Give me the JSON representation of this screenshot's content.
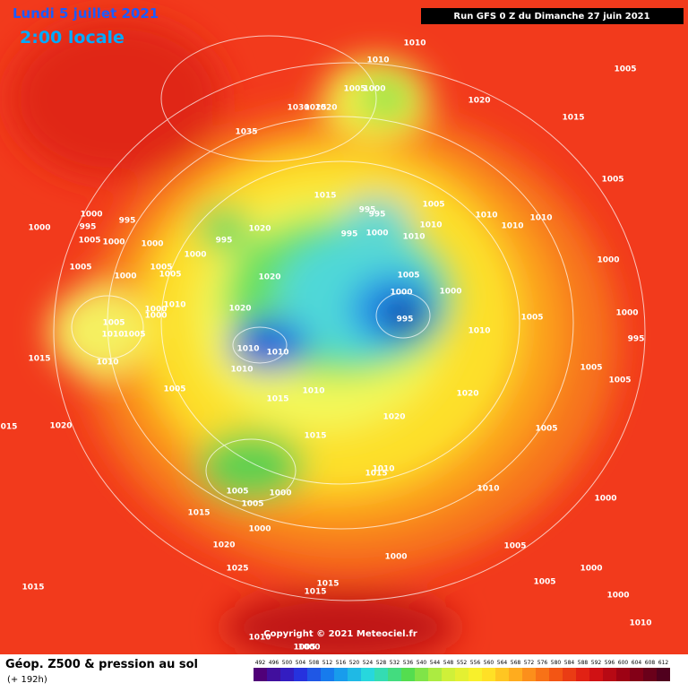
{
  "header": {
    "date": "Lundi 5 juillet 2021",
    "time": "2:00 locale",
    "run": "Run GFS 0 Z du Dimanche 27 juin 2021"
  },
  "footer": {
    "title": "Géop. Z500 & pression au sol",
    "lead": "(+ 192h)",
    "copyright": "Copyright © 2021 Meteociel.fr"
  },
  "colorbar": {
    "labels": [
      492,
      496,
      500,
      504,
      508,
      512,
      516,
      520,
      524,
      528,
      532,
      536,
      540,
      544,
      548,
      552,
      556,
      560,
      564,
      568,
      572,
      576,
      580,
      584,
      588,
      592,
      596,
      600,
      604,
      608,
      612
    ]
  },
  "pressure_labels": [
    "1010",
    "1010",
    "1005",
    "1000",
    "1020",
    "1005",
    "1015",
    "1030",
    "1025",
    "1020",
    "1035",
    "1015",
    "995",
    "995",
    "1005",
    "1010",
    "1010",
    "1010",
    "1005",
    "1000",
    "995",
    "995",
    "1005",
    "1000",
    "1000",
    "1000",
    "995",
    "1020",
    "995",
    "1000",
    "1010",
    "1010",
    "1000",
    "1005",
    "1005",
    "1005",
    "1000",
    "1020",
    "1005",
    "1000",
    "1000",
    "1000",
    "1010",
    "1000",
    "1000",
    "1020",
    "1000",
    "995",
    "1005",
    "1005",
    "1010",
    "1005",
    "995",
    "1010",
    "1010",
    "1010",
    "1015",
    "1010",
    "1010",
    "1005",
    "1005",
    "1005",
    "1010",
    "1015",
    "1020",
    "1020",
    "015",
    "1020",
    "1005",
    "1015",
    "1015",
    "1010",
    "1005",
    "1000",
    "1010",
    "1005",
    "1000",
    "1015",
    "1000",
    "1020",
    "1005",
    "1000",
    "1025",
    "1015",
    "1000",
    "1015",
    "1015",
    "1005",
    "1000",
    "1010",
    "1010",
    "1000",
    "1005"
  ]
}
